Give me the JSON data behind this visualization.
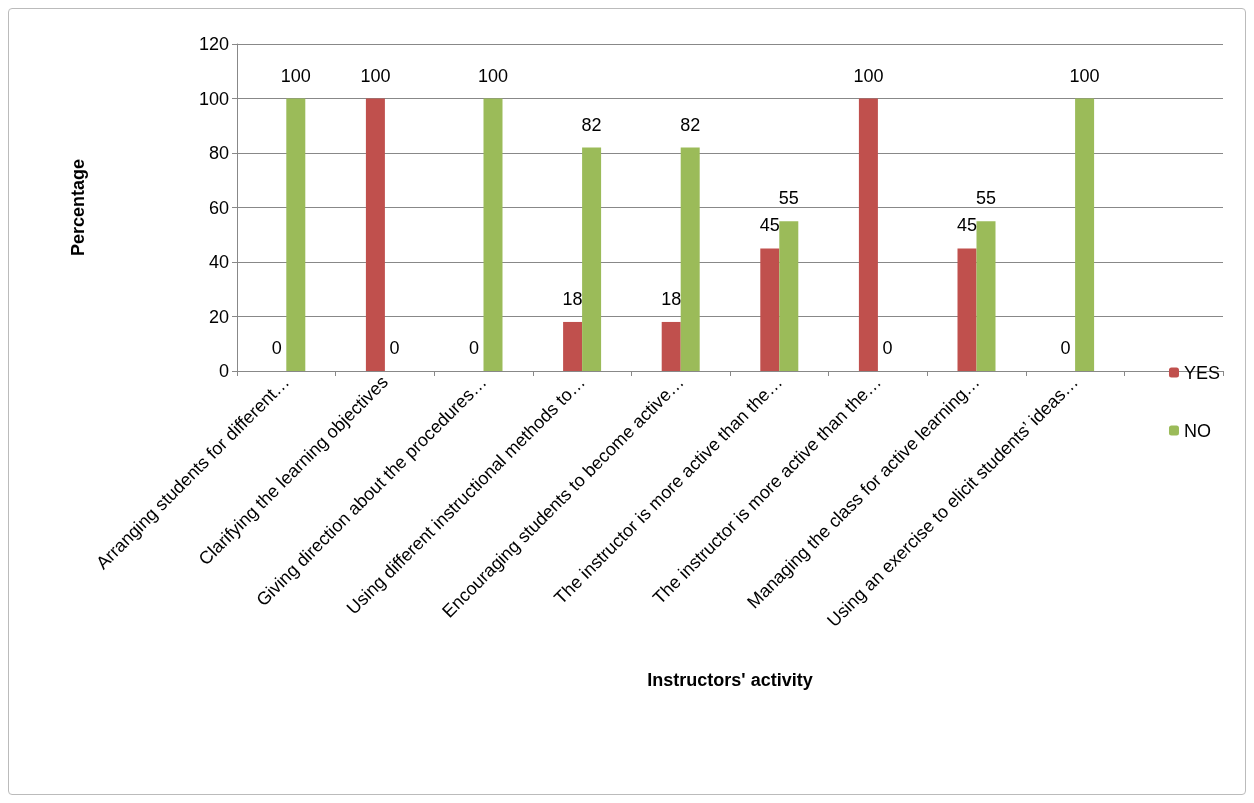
{
  "chart_data": {
    "type": "bar",
    "xlabel": "Instructors' activity",
    "ylabel": "Percentage",
    "categories": [
      "Arranging students for different…",
      "Clarifying the learning objectives",
      "Giving direction about the procedures…",
      "Using different instructional methods to…",
      "Encouraging students to become active…",
      "The instructor is more active than the…",
      "The instructor is more active than the…",
      "Managing the class for active learning…",
      "Using an exercise to elicit students’ ideas…",
      null
    ],
    "series": [
      {
        "name": "YES",
        "color": "#c0504d",
        "values": [
          0,
          100,
          0,
          18,
          18,
          45,
          100,
          45,
          0,
          null
        ]
      },
      {
        "name": "NO",
        "color": "#9bbb59",
        "values": [
          100,
          0,
          100,
          82,
          82,
          55,
          0,
          55,
          100,
          null
        ]
      }
    ],
    "ylim": [
      0,
      120
    ],
    "yticks": [
      0,
      20,
      40,
      60,
      80,
      100,
      120
    ],
    "grid": "y",
    "legend": "right",
    "data_labels": true
  }
}
